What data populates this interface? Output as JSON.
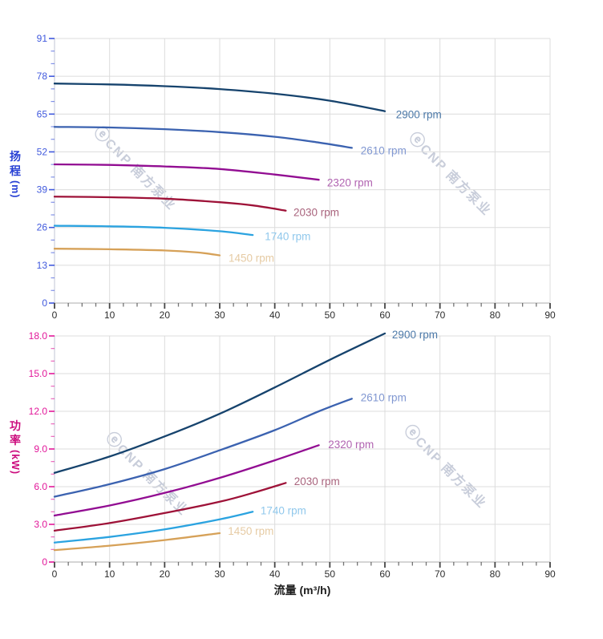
{
  "figure": {
    "x_axis": {
      "label": "流量 (m³/h)",
      "min": 0,
      "max": 90,
      "major_step": 10,
      "minor_step": 2.5,
      "tick_labels": [
        "0",
        "10",
        "20",
        "30",
        "40",
        "50",
        "60",
        "70",
        "80",
        "90"
      ],
      "tick_color": "#464646",
      "label_color": "#2d2d2d",
      "title_color": "#1d1d1d"
    },
    "watermark": {
      "logo": "ⓔ",
      "text": "CNP 南方泵业",
      "color": "#c8cdda"
    }
  },
  "chart_data": [
    {
      "type": "line",
      "name": "head-curves",
      "ylabel": "扬程 (m)",
      "ylabel_chars": {
        "c1": "扬",
        "c2": "程"
      },
      "ylabel_unit": "(m)",
      "xlabel": "流量 (m³/h)",
      "xlim": [
        0,
        90
      ],
      "ylim": [
        0,
        91
      ],
      "y_major_step": 13,
      "y_minor_divisions": 3,
      "y_tick_labels": [
        "0",
        "13",
        "26",
        "39",
        "52",
        "65",
        "78",
        "91"
      ],
      "axis_color": "#4059dd",
      "title_color": "#2740d4",
      "grid": true,
      "legend_position": "inline-end-of-curve",
      "series": [
        {
          "name": "2900 rpm",
          "rpm": 2900,
          "color": "#16436d",
          "label_color": "#4d7aa9",
          "label_at": [
            62.0,
            64.8
          ],
          "points": [
            [
              0,
              75.5
            ],
            [
              10,
              75.2
            ],
            [
              20,
              74.6
            ],
            [
              30,
              73.6
            ],
            [
              40,
              72.0
            ],
            [
              50,
              69.6
            ],
            [
              60,
              66.0
            ]
          ]
        },
        {
          "name": "2610 rpm",
          "rpm": 2610,
          "color": "#3b62b0",
          "label_color": "#8097d1",
          "label_at": [
            55.6,
            52.4
          ],
          "points": [
            [
              0,
              60.6
            ],
            [
              10,
              60.4
            ],
            [
              20,
              59.8
            ],
            [
              30,
              58.8
            ],
            [
              40,
              57.2
            ],
            [
              48,
              55.2
            ],
            [
              54,
              53.4
            ]
          ]
        },
        {
          "name": "2320 rpm",
          "rpm": 2320,
          "color": "#920d92",
          "label_color": "#b164b1",
          "label_at": [
            49.5,
            41.4
          ],
          "points": [
            [
              0,
              47.7
            ],
            [
              10,
              47.5
            ],
            [
              20,
              47.0
            ],
            [
              30,
              46.1
            ],
            [
              40,
              44.2
            ],
            [
              48,
              42.4
            ]
          ]
        },
        {
          "name": "2030 rpm",
          "rpm": 2030,
          "color": "#9e1238",
          "label_color": "#a9647d",
          "label_at": [
            43.4,
            31.2
          ],
          "points": [
            [
              0,
              36.6
            ],
            [
              10,
              36.4
            ],
            [
              20,
              35.9
            ],
            [
              30,
              34.7
            ],
            [
              36,
              33.6
            ],
            [
              42,
              31.8
            ]
          ]
        },
        {
          "name": "1740 rpm",
          "rpm": 1740,
          "color": "#2ba3e0",
          "label_color": "#90c8ec",
          "label_at": [
            38.2,
            22.9
          ],
          "points": [
            [
              0,
              26.6
            ],
            [
              10,
              26.4
            ],
            [
              20,
              25.9
            ],
            [
              30,
              24.7
            ],
            [
              36,
              23.4
            ]
          ]
        },
        {
          "name": "1450 rpm",
          "rpm": 1450,
          "color": "#d6a158",
          "label_color": "#e6cba4",
          "label_at": [
            31.6,
            15.4
          ],
          "points": [
            [
              0,
              18.7
            ],
            [
              10,
              18.5
            ],
            [
              20,
              18.1
            ],
            [
              26,
              17.4
            ],
            [
              30,
              16.4
            ]
          ]
        }
      ]
    },
    {
      "type": "line",
      "name": "power-curves",
      "ylabel": "功率 (kW)",
      "ylabel_chars": {
        "c1": "功",
        "c2": "率"
      },
      "ylabel_unit": "(kW)",
      "xlabel": "流量 (m³/h)",
      "xlim": [
        0,
        90
      ],
      "ylim": [
        0,
        18
      ],
      "y_major_step": 3,
      "y_minor_divisions": 3,
      "y_tick_labels": [
        "0",
        "3.0",
        "6.0",
        "9.0",
        "12.0",
        "15.0",
        "18.0"
      ],
      "axis_color": "#e2189a",
      "title_color": "#cc0d7e",
      "grid": true,
      "legend_position": "inline-end-of-curve",
      "series": [
        {
          "name": "2900 rpm",
          "rpm": 2900,
          "color": "#16436d",
          "label_color": "#4d7aa9",
          "label_at": [
            61.3,
            18.1
          ],
          "points": [
            [
              0,
              7.1
            ],
            [
              10,
              8.4
            ],
            [
              20,
              10.0
            ],
            [
              30,
              11.8
            ],
            [
              40,
              13.9
            ],
            [
              50,
              16.1
            ],
            [
              60,
              18.2
            ]
          ]
        },
        {
          "name": "2610 rpm",
          "rpm": 2610,
          "color": "#3b62b0",
          "label_color": "#8097d1",
          "label_at": [
            55.6,
            13.1
          ],
          "points": [
            [
              0,
              5.2
            ],
            [
              10,
              6.2
            ],
            [
              20,
              7.4
            ],
            [
              30,
              8.9
            ],
            [
              40,
              10.5
            ],
            [
              48,
              12.0
            ],
            [
              54,
              13.0
            ]
          ]
        },
        {
          "name": "2320 rpm",
          "rpm": 2320,
          "color": "#920d92",
          "label_color": "#b164b1",
          "label_at": [
            49.7,
            9.35
          ],
          "points": [
            [
              0,
              3.7
            ],
            [
              10,
              4.5
            ],
            [
              20,
              5.5
            ],
            [
              30,
              6.7
            ],
            [
              40,
              8.1
            ],
            [
              48,
              9.3
            ]
          ]
        },
        {
          "name": "2030 rpm",
          "rpm": 2030,
          "color": "#9e1238",
          "label_color": "#a9647d",
          "label_at": [
            43.5,
            6.4
          ],
          "points": [
            [
              0,
              2.5
            ],
            [
              10,
              3.1
            ],
            [
              20,
              3.9
            ],
            [
              30,
              4.8
            ],
            [
              36,
              5.5
            ],
            [
              42,
              6.3
            ]
          ]
        },
        {
          "name": "1740 rpm",
          "rpm": 1740,
          "color": "#2ba3e0",
          "label_color": "#90c8ec",
          "label_at": [
            37.4,
            4.1
          ],
          "points": [
            [
              0,
              1.55
            ],
            [
              10,
              2.0
            ],
            [
              20,
              2.6
            ],
            [
              30,
              3.4
            ],
            [
              36,
              4.0
            ]
          ]
        },
        {
          "name": "1450 rpm",
          "rpm": 1450,
          "color": "#d6a158",
          "label_color": "#e6cba4",
          "label_at": [
            31.5,
            2.45
          ],
          "points": [
            [
              0,
              0.95
            ],
            [
              10,
              1.3
            ],
            [
              20,
              1.75
            ],
            [
              30,
              2.3
            ]
          ]
        }
      ]
    }
  ]
}
